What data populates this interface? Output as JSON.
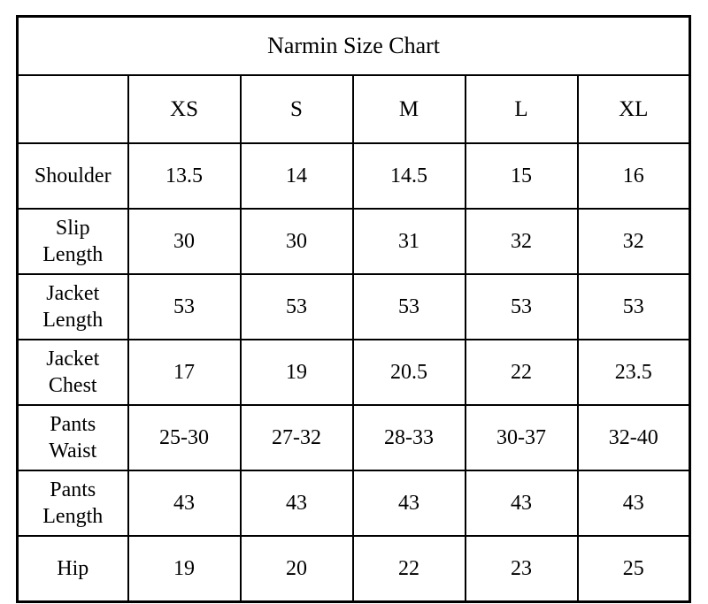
{
  "chart_data": {
    "type": "table",
    "title": "Narmin Size Chart",
    "columns": [
      "",
      "XS",
      "S",
      "M",
      "L",
      "XL"
    ],
    "rows": [
      {
        "label": "Shoulder",
        "values": [
          "13.5",
          "14",
          "14.5",
          "15",
          "16"
        ]
      },
      {
        "label": "Slip Length",
        "values": [
          "30",
          "30",
          "31",
          "32",
          "32"
        ]
      },
      {
        "label": "Jacket Length",
        "values": [
          "53",
          "53",
          "53",
          "53",
          "53"
        ]
      },
      {
        "label": "Jacket Chest",
        "values": [
          "17",
          "19",
          "20.5",
          "22",
          "23.5"
        ]
      },
      {
        "label": "Pants Waist",
        "values": [
          "25-30",
          "27-32",
          "28-33",
          "30-37",
          "32-40"
        ]
      },
      {
        "label": "Pants Length",
        "values": [
          "43",
          "43",
          "43",
          "43",
          "43"
        ]
      },
      {
        "label": "Hip",
        "values": [
          "19",
          "20",
          "22",
          "23",
          "25"
        ]
      }
    ],
    "layout": {
      "grid": "on",
      "border_color": "#000000",
      "text_color": "#000000",
      "background": "#ffffff"
    }
  }
}
